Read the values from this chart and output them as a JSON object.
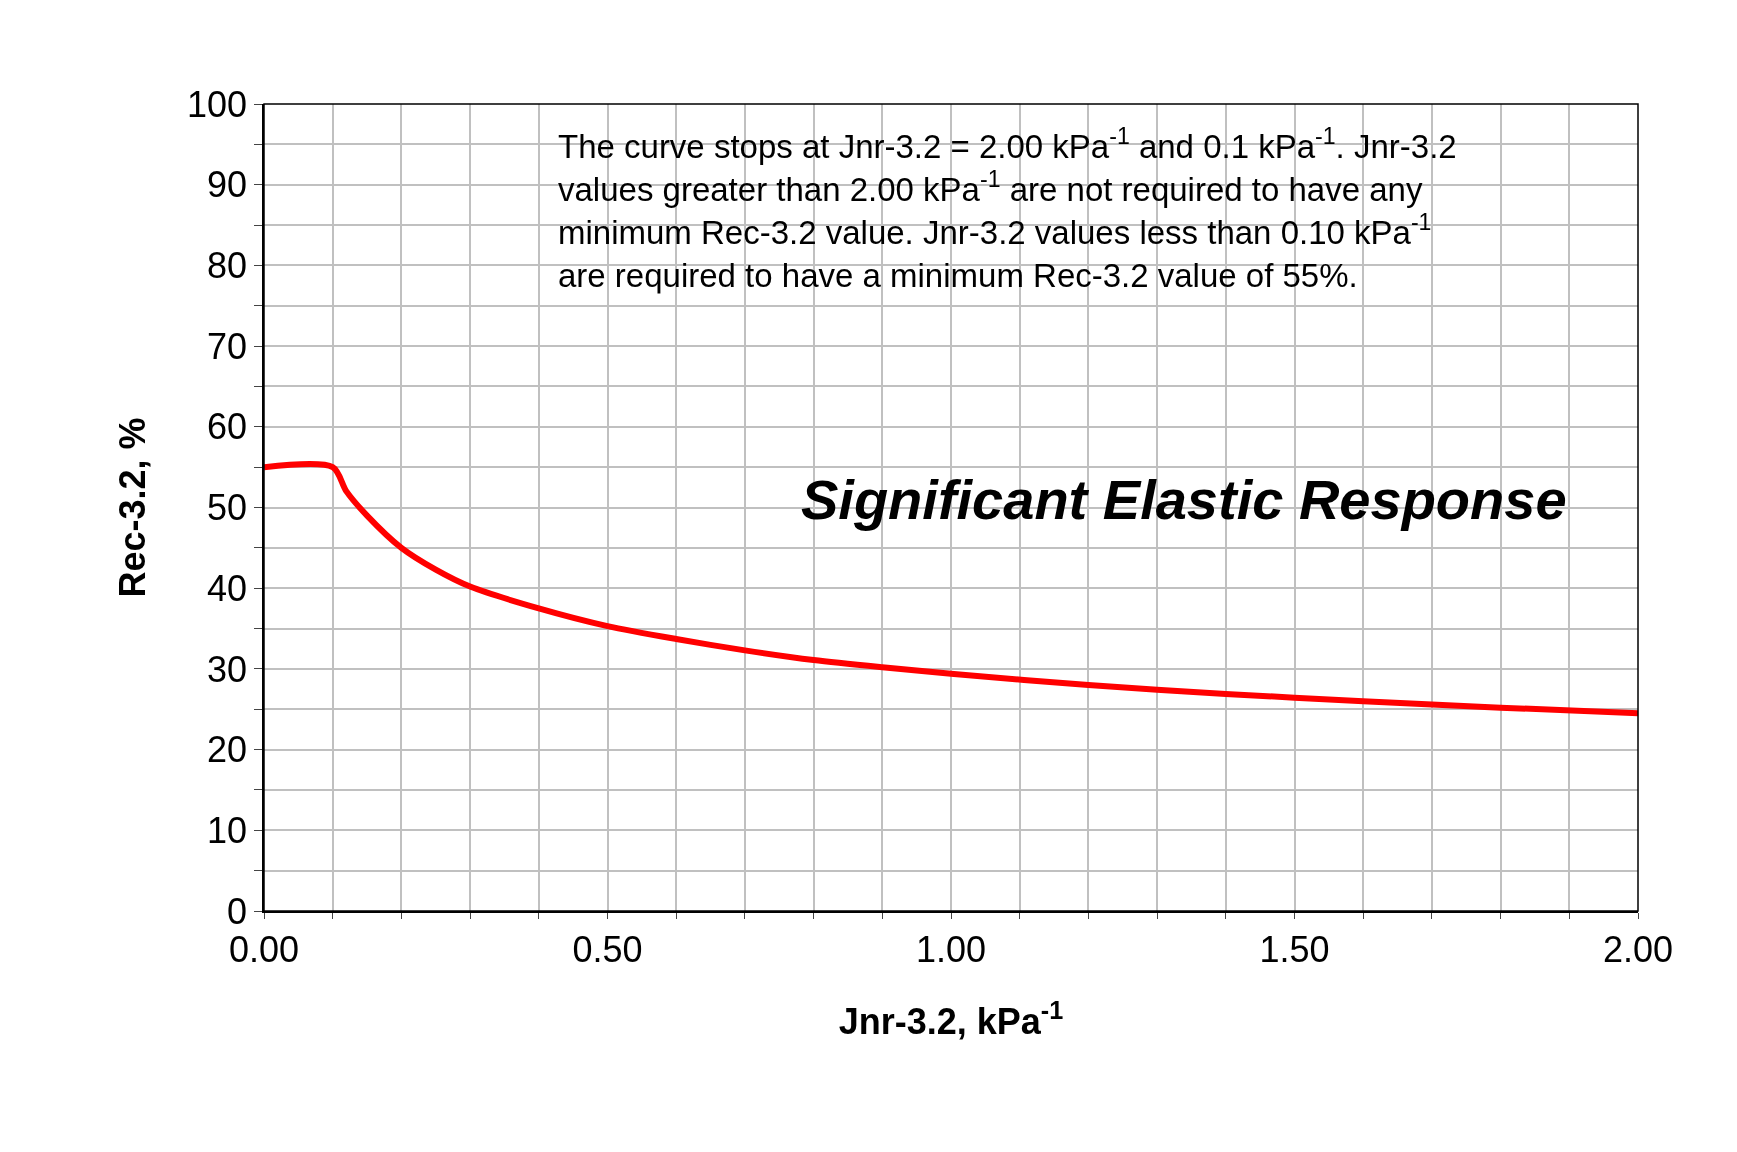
{
  "chart_data": {
    "type": "line",
    "xlabel": "Jnr-3.2, kPa$^{-1}$",
    "ylabel": "Rec-3.2, %",
    "x": [
      0,
      0.1,
      0.12,
      0.15,
      0.2,
      0.25,
      0.3,
      0.4,
      0.5,
      0.6,
      0.7,
      0.8,
      0.9,
      1.0,
      1.2,
      1.4,
      1.6,
      1.8,
      2.0
    ],
    "series": [
      {
        "color": "#ff0000",
        "values": [
          55,
          55,
          52,
          49,
          45,
          42.3,
          40.2,
          37.5,
          35.3,
          33.7,
          32.3,
          31.1,
          30.2,
          29.4,
          28,
          26.9,
          26,
          25.2,
          24.5
        ]
      }
    ],
    "xlim": [
      0,
      2
    ],
    "ylim": [
      0,
      100
    ],
    "xticks": [
      {
        "value": 0,
        "label": "0.00"
      },
      {
        "value": 0.1,
        "label": null
      },
      {
        "value": 0.2,
        "label": null
      },
      {
        "value": 0.3,
        "label": null
      },
      {
        "value": 0.4,
        "label": null
      },
      {
        "value": 0.5,
        "label": "0.50"
      },
      {
        "value": 0.6,
        "label": null
      },
      {
        "value": 0.7,
        "label": null
      },
      {
        "value": 0.8,
        "label": null
      },
      {
        "value": 0.9,
        "label": null
      },
      {
        "value": 1,
        "label": "1.00"
      },
      {
        "value": 1.1,
        "label": null
      },
      {
        "value": 1.2,
        "label": null
      },
      {
        "value": 1.3,
        "label": null
      },
      {
        "value": 1.4,
        "label": null
      },
      {
        "value": 1.5,
        "label": "1.50"
      },
      {
        "value": 1.6,
        "label": null
      },
      {
        "value": 1.7,
        "label": null
      },
      {
        "value": 1.8,
        "label": null
      },
      {
        "value": 1.9,
        "label": null
      },
      {
        "value": 2,
        "label": "2.00"
      }
    ],
    "yticks": [
      0,
      {
        "value": 5,
        "label": null
      },
      10,
      {
        "value": 15,
        "label": null
      },
      20,
      {
        "value": 25,
        "label": null
      },
      30,
      {
        "value": 35,
        "label": null
      },
      40,
      {
        "value": 45,
        "label": null
      },
      50,
      {
        "value": 55,
        "label": null
      },
      60,
      {
        "value": 65,
        "label": null
      },
      70,
      {
        "value": 75,
        "label": null
      },
      80,
      {
        "value": 85,
        "label": null
      },
      90,
      {
        "value": 95,
        "label": null
      },
      100
    ],
    "grid": true,
    "marker": "none",
    "line_style": "solid",
    "annotations": [
      "The curve stops at Jnr-3.2 = 2.00 kPa$^{-1}$ and 0.1 kPa$^{-1}$. Jnr-3.2\nvalues greater than 2.00 kPa$^{-1}$ are not required to have any\nminimum Rec-3.2 value. Jnr-3.2 values less than 0.10 kPa$^{-1}$\nare required to have a minimum Rec-3.2 value of 55%.",
      "Significant Elastic Response"
    ]
  }
}
